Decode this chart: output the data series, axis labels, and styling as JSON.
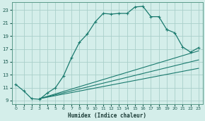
{
  "xlabel": "Humidex (Indice chaleur)",
  "background_color": "#d4eeea",
  "grid_color": "#aacfca",
  "line_color": "#1a7a6e",
  "xlim": [
    -0.5,
    23.5
  ],
  "ylim": [
    8.5,
    24.2
  ],
  "yticks": [
    9,
    11,
    13,
    15,
    17,
    19,
    21,
    23
  ],
  "xticks": [
    0,
    1,
    2,
    3,
    4,
    5,
    6,
    7,
    8,
    9,
    10,
    11,
    12,
    13,
    14,
    15,
    16,
    17,
    18,
    19,
    20,
    21,
    22,
    23
  ],
  "curve1_x": [
    0,
    1,
    2,
    3,
    4,
    5,
    6,
    7,
    8,
    9,
    10,
    11,
    12,
    13,
    14,
    15,
    16,
    17,
    18,
    19,
    20,
    21,
    22,
    23
  ],
  "curve1_y": [
    11.5,
    10.5,
    9.3,
    9.2,
    10.2,
    11.0,
    12.8,
    15.6,
    18.0,
    19.3,
    21.2,
    22.5,
    22.4,
    22.5,
    22.5,
    23.5,
    23.6,
    22.0,
    22.0,
    20.0,
    19.5,
    17.3,
    16.5,
    17.2
  ],
  "curve2_x": [
    3,
    23
  ],
  "curve2_y": [
    9.3,
    14.0
  ],
  "curve3_x": [
    3,
    23
  ],
  "curve3_y": [
    9.3,
    15.3
  ],
  "curve4_x": [
    3,
    23
  ],
  "curve4_y": [
    9.3,
    16.7
  ],
  "marker_stops": [
    20,
    21,
    22,
    23
  ],
  "curve1_stop": 19
}
